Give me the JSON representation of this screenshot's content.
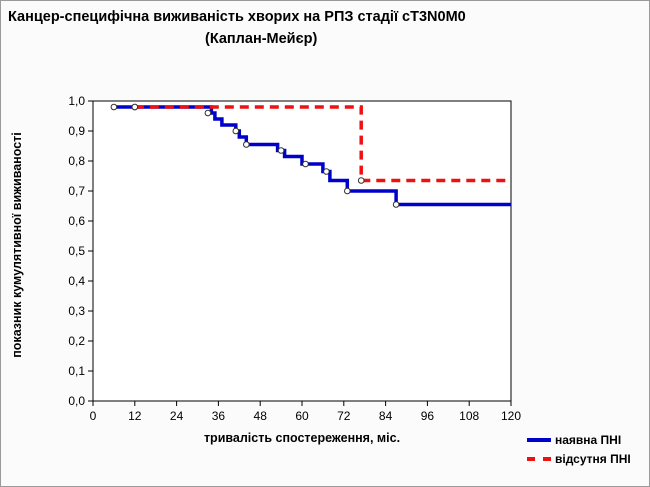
{
  "chart_data": {
    "type": "line",
    "step": true,
    "title": "Канцер-специфічна виживаність хворих на РПЗ стадії cT3N0M0",
    "subtitle": "(Каплан-Мейєр)",
    "xlabel": "тривалість спостереження, міс.",
    "ylabel": "показник кумулятивної виживаності",
    "xlim": [
      0,
      120
    ],
    "ylim": [
      0,
      1
    ],
    "x_ticks": [
      "0",
      "12",
      "24",
      "36",
      "48",
      "60",
      "72",
      "84",
      "96",
      "108",
      "120"
    ],
    "y_ticks": [
      "0,0",
      "0,1",
      "0,2",
      "0,3",
      "0,4",
      "0,5",
      "0,6",
      "0,7",
      "0,8",
      "0,9",
      "1,0"
    ],
    "grid": false,
    "legend_position": "bottom-right",
    "series": [
      {
        "name": "наявна ПНІ",
        "color": "#0000cc",
        "style": "solid",
        "steps": [
          [
            6,
            0.98
          ],
          [
            34,
            0.98
          ],
          [
            34,
            0.96
          ],
          [
            35,
            0.96
          ],
          [
            35,
            0.94
          ],
          [
            37,
            0.94
          ],
          [
            37,
            0.92
          ],
          [
            41,
            0.92
          ],
          [
            41,
            0.9
          ],
          [
            42,
            0.9
          ],
          [
            42,
            0.88
          ],
          [
            44,
            0.88
          ],
          [
            44,
            0.855
          ],
          [
            53,
            0.855
          ],
          [
            53,
            0.835
          ],
          [
            55,
            0.835
          ],
          [
            55,
            0.815
          ],
          [
            60,
            0.815
          ],
          [
            60,
            0.79
          ],
          [
            66,
            0.79
          ],
          [
            66,
            0.765
          ],
          [
            68,
            0.765
          ],
          [
            68,
            0.735
          ],
          [
            73,
            0.735
          ],
          [
            73,
            0.7
          ],
          [
            87,
            0.7
          ],
          [
            87,
            0.655
          ],
          [
            120,
            0.655
          ]
        ],
        "censored": [
          [
            6,
            0.98
          ],
          [
            12,
            0.98
          ],
          [
            33,
            0.96
          ],
          [
            41,
            0.9
          ],
          [
            44,
            0.855
          ],
          [
            54,
            0.835
          ],
          [
            61,
            0.79
          ],
          [
            67,
            0.765
          ],
          [
            73,
            0.7
          ],
          [
            87,
            0.655
          ]
        ]
      },
      {
        "name": "відсутня ПНІ",
        "color": "#ee1111",
        "style": "dashed",
        "steps": [
          [
            12,
            0.98
          ],
          [
            77,
            0.98
          ],
          [
            77,
            0.735
          ],
          [
            120,
            0.735
          ]
        ],
        "censored": [
          [
            12,
            0.98
          ],
          [
            77,
            0.735
          ]
        ]
      }
    ]
  }
}
